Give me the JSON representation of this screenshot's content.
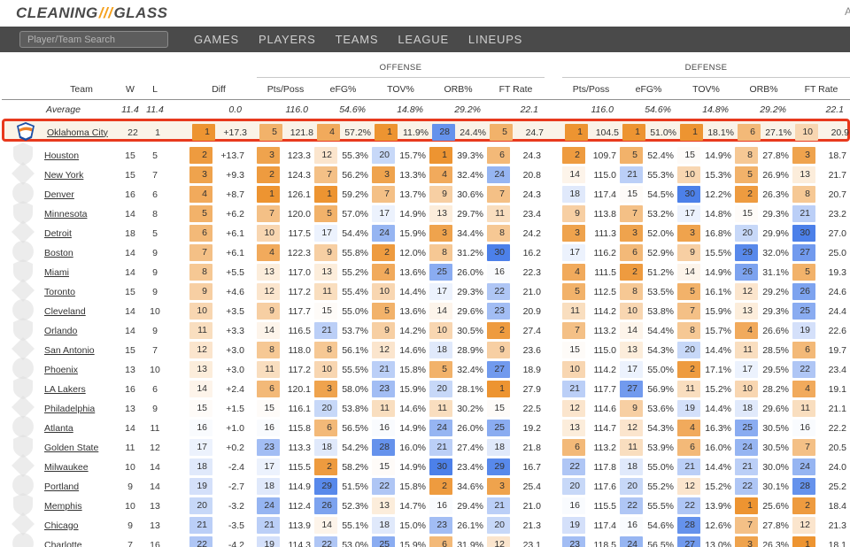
{
  "brand": {
    "logo_left": "CLEANING",
    "logo_slashes": "///",
    "logo_right": "GLASS",
    "account_hint": "A"
  },
  "nav": {
    "search_placeholder": "Player/Team Search",
    "items": [
      "GAMES",
      "PLAYERS",
      "TEAMS",
      "LEAGUE",
      "LINEUPS"
    ]
  },
  "colors": {
    "rank_best": "#ED9431",
    "rank_mid": "#FFFFFF",
    "rank_worst": "#4C80E9",
    "highlight_border": "#E8391D",
    "highlight_bg": "#FAF3E8",
    "nav_bg": "#4A4A4A",
    "accent": "#F5A01B",
    "ghost_logo": "#DEDEDE"
  },
  "table": {
    "group_headers": {
      "offense": "OFFENSE",
      "defense": "DEFENSE"
    },
    "columns": {
      "team": "Team",
      "w": "W",
      "l": "L",
      "diff": "Diff",
      "stats": [
        "Pts/Poss",
        "eFG%",
        "TOV%",
        "ORB%",
        "FT Rate",
        "Pts/Poss",
        "eFG%",
        "TOV%",
        "ORB%",
        "FT Rate"
      ]
    },
    "average": {
      "label": "Average",
      "w": "11.4",
      "l": "11.4",
      "diff": "0.0",
      "values": [
        "116.0",
        "54.6%",
        "14.8%",
        "29.2%",
        "22.1",
        "116.0",
        "54.6%",
        "14.8%",
        "29.2%",
        "22.1"
      ]
    },
    "teams": [
      {
        "name": "Oklahoma City",
        "w": "22",
        "l": "1",
        "diff_rank": 1,
        "diff": "+17.3",
        "highlight": true,
        "stats": [
          [
            5,
            "121.8"
          ],
          [
            4,
            "57.2%"
          ],
          [
            1,
            "11.9%"
          ],
          [
            28,
            "24.4%"
          ],
          [
            5,
            "24.7"
          ],
          [
            1,
            "104.5"
          ],
          [
            1,
            "51.0%"
          ],
          [
            1,
            "18.1%"
          ],
          [
            6,
            "27.1%"
          ],
          [
            10,
            "20.9"
          ]
        ]
      },
      {
        "name": "Houston",
        "w": "15",
        "l": "5",
        "diff_rank": 2,
        "diff": "+13.7",
        "stats": [
          [
            3,
            "123.3"
          ],
          [
            12,
            "55.3%"
          ],
          [
            20,
            "15.7%"
          ],
          [
            1,
            "39.3%"
          ],
          [
            6,
            "24.3"
          ],
          [
            2,
            "109.7"
          ],
          [
            5,
            "52.4%"
          ],
          [
            15,
            "14.9%"
          ],
          [
            8,
            "27.8%"
          ],
          [
            3,
            "18.7"
          ]
        ]
      },
      {
        "name": "New York",
        "w": "15",
        "l": "7",
        "diff_rank": 3,
        "diff": "+9.3",
        "stats": [
          [
            2,
            "124.3"
          ],
          [
            7,
            "56.2%"
          ],
          [
            3,
            "13.3%"
          ],
          [
            4,
            "32.4%"
          ],
          [
            24,
            "20.8"
          ],
          [
            14,
            "115.0"
          ],
          [
            21,
            "55.3%"
          ],
          [
            10,
            "15.3%"
          ],
          [
            5,
            "26.9%"
          ],
          [
            13,
            "21.7"
          ]
        ]
      },
      {
        "name": "Denver",
        "w": "16",
        "l": "6",
        "diff_rank": 4,
        "diff": "+8.7",
        "stats": [
          [
            1,
            "126.1"
          ],
          [
            1,
            "59.2%"
          ],
          [
            7,
            "13.7%"
          ],
          [
            9,
            "30.6%"
          ],
          [
            7,
            "24.3"
          ],
          [
            18,
            "117.4"
          ],
          [
            15,
            "54.5%"
          ],
          [
            30,
            "12.2%"
          ],
          [
            2,
            "26.3%"
          ],
          [
            8,
            "20.7"
          ]
        ]
      },
      {
        "name": "Minnesota",
        "w": "14",
        "l": "8",
        "diff_rank": 5,
        "diff": "+6.2",
        "stats": [
          [
            7,
            "120.0"
          ],
          [
            5,
            "57.0%"
          ],
          [
            17,
            "14.9%"
          ],
          [
            13,
            "29.7%"
          ],
          [
            11,
            "23.4"
          ],
          [
            9,
            "113.8"
          ],
          [
            7,
            "53.2%"
          ],
          [
            17,
            "14.8%"
          ],
          [
            15,
            "29.3%"
          ],
          [
            21,
            "23.2"
          ]
        ]
      },
      {
        "name": "Detroit",
        "w": "18",
        "l": "5",
        "diff_rank": 6,
        "diff": "+6.1",
        "stats": [
          [
            10,
            "117.5"
          ],
          [
            17,
            "54.4%"
          ],
          [
            24,
            "15.9%"
          ],
          [
            3,
            "34.4%"
          ],
          [
            8,
            "24.2"
          ],
          [
            3,
            "111.3"
          ],
          [
            3,
            "52.0%"
          ],
          [
            3,
            "16.8%"
          ],
          [
            20,
            "29.9%"
          ],
          [
            30,
            "27.0"
          ]
        ]
      },
      {
        "name": "Boston",
        "w": "14",
        "l": "9",
        "diff_rank": 7,
        "diff": "+6.1",
        "stats": [
          [
            4,
            "122.3"
          ],
          [
            9,
            "55.8%"
          ],
          [
            2,
            "12.0%"
          ],
          [
            8,
            "31.2%"
          ],
          [
            30,
            "16.2"
          ],
          [
            17,
            "116.2"
          ],
          [
            6,
            "52.9%"
          ],
          [
            9,
            "15.5%"
          ],
          [
            29,
            "32.0%"
          ],
          [
            27,
            "25.0"
          ]
        ]
      },
      {
        "name": "Miami",
        "w": "14",
        "l": "9",
        "diff_rank": 8,
        "diff": "+5.5",
        "stats": [
          [
            13,
            "117.0"
          ],
          [
            13,
            "55.2%"
          ],
          [
            4,
            "13.6%"
          ],
          [
            25,
            "26.0%"
          ],
          [
            16,
            "22.3"
          ],
          [
            4,
            "111.5"
          ],
          [
            2,
            "51.2%"
          ],
          [
            14,
            "14.9%"
          ],
          [
            26,
            "31.1%"
          ],
          [
            5,
            "19.3"
          ]
        ]
      },
      {
        "name": "Toronto",
        "w": "15",
        "l": "9",
        "diff_rank": 9,
        "diff": "+4.6",
        "stats": [
          [
            12,
            "117.2"
          ],
          [
            11,
            "55.4%"
          ],
          [
            10,
            "14.4%"
          ],
          [
            17,
            "29.3%"
          ],
          [
            22,
            "21.0"
          ],
          [
            5,
            "112.5"
          ],
          [
            8,
            "53.5%"
          ],
          [
            5,
            "16.1%"
          ],
          [
            12,
            "29.2%"
          ],
          [
            26,
            "24.6"
          ]
        ]
      },
      {
        "name": "Cleveland",
        "w": "14",
        "l": "10",
        "diff_rank": 10,
        "diff": "+3.5",
        "stats": [
          [
            9,
            "117.7"
          ],
          [
            15,
            "55.0%"
          ],
          [
            5,
            "13.6%"
          ],
          [
            14,
            "29.6%"
          ],
          [
            23,
            "20.9"
          ],
          [
            11,
            "114.2"
          ],
          [
            10,
            "53.8%"
          ],
          [
            7,
            "15.9%"
          ],
          [
            13,
            "29.3%"
          ],
          [
            25,
            "24.4"
          ]
        ]
      },
      {
        "name": "Orlando",
        "w": "14",
        "l": "9",
        "diff_rank": 11,
        "diff": "+3.3",
        "stats": [
          [
            14,
            "116.5"
          ],
          [
            21,
            "53.7%"
          ],
          [
            9,
            "14.2%"
          ],
          [
            10,
            "30.5%"
          ],
          [
            2,
            "27.4"
          ],
          [
            7,
            "113.2"
          ],
          [
            14,
            "54.4%"
          ],
          [
            8,
            "15.7%"
          ],
          [
            4,
            "26.6%"
          ],
          [
            19,
            "22.6"
          ]
        ]
      },
      {
        "name": "San Antonio",
        "w": "15",
        "l": "7",
        "diff_rank": 12,
        "diff": "+3.0",
        "stats": [
          [
            8,
            "118.0"
          ],
          [
            8,
            "56.1%"
          ],
          [
            12,
            "14.6%"
          ],
          [
            18,
            "28.9%"
          ],
          [
            9,
            "23.6"
          ],
          [
            15,
            "115.0"
          ],
          [
            13,
            "54.3%"
          ],
          [
            20,
            "14.4%"
          ],
          [
            11,
            "28.5%"
          ],
          [
            6,
            "19.7"
          ]
        ]
      },
      {
        "name": "Phoenix",
        "w": "13",
        "l": "10",
        "diff_rank": 13,
        "diff": "+3.0",
        "stats": [
          [
            11,
            "117.2"
          ],
          [
            10,
            "55.5%"
          ],
          [
            21,
            "15.8%"
          ],
          [
            5,
            "32.4%"
          ],
          [
            27,
            "18.9"
          ],
          [
            10,
            "114.2"
          ],
          [
            17,
            "55.0%"
          ],
          [
            2,
            "17.1%"
          ],
          [
            17,
            "29.5%"
          ],
          [
            22,
            "23.4"
          ]
        ]
      },
      {
        "name": "LA Lakers",
        "w": "16",
        "l": "6",
        "diff_rank": 14,
        "diff": "+2.4",
        "stats": [
          [
            6,
            "120.1"
          ],
          [
            3,
            "58.0%"
          ],
          [
            23,
            "15.9%"
          ],
          [
            20,
            "28.1%"
          ],
          [
            1,
            "27.9"
          ],
          [
            21,
            "117.7"
          ],
          [
            27,
            "56.9%"
          ],
          [
            11,
            "15.2%"
          ],
          [
            10,
            "28.2%"
          ],
          [
            4,
            "19.1"
          ]
        ]
      },
      {
        "name": "Philadelphia",
        "w": "13",
        "l": "9",
        "diff_rank": 15,
        "diff": "+1.5",
        "stats": [
          [
            15,
            "116.1"
          ],
          [
            20,
            "53.8%"
          ],
          [
            11,
            "14.6%"
          ],
          [
            11,
            "30.2%"
          ],
          [
            15,
            "22.5"
          ],
          [
            12,
            "114.6"
          ],
          [
            9,
            "53.6%"
          ],
          [
            19,
            "14.4%"
          ],
          [
            18,
            "29.6%"
          ],
          [
            11,
            "21.1"
          ]
        ]
      },
      {
        "name": "Atlanta",
        "w": "14",
        "l": "11",
        "diff_rank": 16,
        "diff": "+1.0",
        "stats": [
          [
            16,
            "115.8"
          ],
          [
            6,
            "56.5%"
          ],
          [
            16,
            "14.9%"
          ],
          [
            24,
            "26.0%"
          ],
          [
            25,
            "19.2"
          ],
          [
            13,
            "114.7"
          ],
          [
            12,
            "54.3%"
          ],
          [
            4,
            "16.3%"
          ],
          [
            25,
            "30.5%"
          ],
          [
            16,
            "22.2"
          ]
        ]
      },
      {
        "name": "Golden State",
        "w": "11",
        "l": "12",
        "diff_rank": 17,
        "diff": "+0.2",
        "stats": [
          [
            23,
            "113.3"
          ],
          [
            18,
            "54.2%"
          ],
          [
            28,
            "16.0%"
          ],
          [
            21,
            "27.4%"
          ],
          [
            18,
            "21.8"
          ],
          [
            6,
            "113.2"
          ],
          [
            11,
            "53.9%"
          ],
          [
            6,
            "16.0%"
          ],
          [
            24,
            "30.5%"
          ],
          [
            7,
            "20.5"
          ]
        ]
      },
      {
        "name": "Milwaukee",
        "w": "10",
        "l": "14",
        "diff_rank": 18,
        "diff": "-2.4",
        "stats": [
          [
            17,
            "115.5"
          ],
          [
            2,
            "58.2%"
          ],
          [
            15,
            "14.9%"
          ],
          [
            30,
            "23.4%"
          ],
          [
            29,
            "16.7"
          ],
          [
            22,
            "117.8"
          ],
          [
            18,
            "55.0%"
          ],
          [
            21,
            "14.4%"
          ],
          [
            21,
            "30.0%"
          ],
          [
            24,
            "24.0"
          ]
        ]
      },
      {
        "name": "Portland",
        "w": "9",
        "l": "14",
        "diff_rank": 19,
        "diff": "-2.7",
        "stats": [
          [
            18,
            "114.9"
          ],
          [
            29,
            "51.5%"
          ],
          [
            22,
            "15.8%"
          ],
          [
            2,
            "34.6%"
          ],
          [
            3,
            "25.4"
          ],
          [
            20,
            "117.6"
          ],
          [
            20,
            "55.2%"
          ],
          [
            12,
            "15.2%"
          ],
          [
            22,
            "30.1%"
          ],
          [
            28,
            "25.2"
          ]
        ]
      },
      {
        "name": "Memphis",
        "w": "10",
        "l": "13",
        "diff_rank": 20,
        "diff": "-3.2",
        "stats": [
          [
            24,
            "112.4"
          ],
          [
            26,
            "52.3%"
          ],
          [
            13,
            "14.7%"
          ],
          [
            16,
            "29.4%"
          ],
          [
            21,
            "21.0"
          ],
          [
            16,
            "115.5"
          ],
          [
            22,
            "55.5%"
          ],
          [
            22,
            "13.9%"
          ],
          [
            1,
            "25.6%"
          ],
          [
            2,
            "18.4"
          ]
        ]
      },
      {
        "name": "Chicago",
        "w": "9",
        "l": "13",
        "diff_rank": 21,
        "diff": "-3.5",
        "stats": [
          [
            21,
            "113.9"
          ],
          [
            14,
            "55.1%"
          ],
          [
            18,
            "15.0%"
          ],
          [
            23,
            "26.1%"
          ],
          [
            20,
            "21.3"
          ],
          [
            19,
            "117.4"
          ],
          [
            16,
            "54.6%"
          ],
          [
            28,
            "12.6%"
          ],
          [
            7,
            "27.8%"
          ],
          [
            12,
            "21.3"
          ]
        ]
      },
      {
        "name": "Charlotte",
        "w": "7",
        "l": "16",
        "diff_rank": 22,
        "diff": "-4.2",
        "stats": [
          [
            19,
            "114.3"
          ],
          [
            22,
            "53.0%"
          ],
          [
            25,
            "15.9%"
          ],
          [
            6,
            "31.9%"
          ],
          [
            12,
            "23.1"
          ],
          [
            23,
            "118.5"
          ],
          [
            24,
            "56.5%"
          ],
          [
            27,
            "13.0%"
          ],
          [
            3,
            "26.3%"
          ],
          [
            1,
            "18.1"
          ]
        ]
      }
    ]
  }
}
